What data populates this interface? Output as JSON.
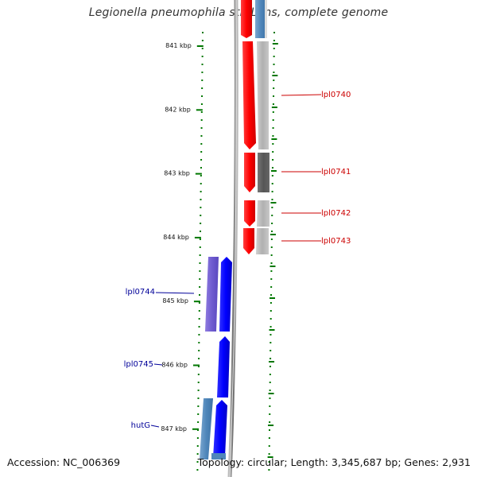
{
  "title": "Legionella pneumophila str. Lens, complete genome",
  "accession": "Accession: NC_006369",
  "summary": "Topology: circular; Length: 3,345,687 bp; Genes: 2,931",
  "kbp_ticks": [
    {
      "label": "841 kbp",
      "kbp": 841
    },
    {
      "label": "842 kbp",
      "kbp": 842
    },
    {
      "label": "843 kbp",
      "kbp": 843
    },
    {
      "label": "844 kbp",
      "kbp": 844
    },
    {
      "label": "845 kbp",
      "kbp": 845
    },
    {
      "label": "846 kbp",
      "kbp": 846
    },
    {
      "label": "847 kbp",
      "kbp": 847
    }
  ],
  "genes": [
    {
      "name": "lpl0740",
      "strand": "forward",
      "color": "#cc0000"
    },
    {
      "name": "lpl0741",
      "strand": "forward",
      "color": "#cc0000"
    },
    {
      "name": "lpl0742",
      "strand": "forward",
      "color": "#cc0000"
    },
    {
      "name": "lpl0743",
      "strand": "forward",
      "color": "#cc0000"
    },
    {
      "name": "lpl0744",
      "strand": "reverse",
      "color": "#000099"
    },
    {
      "name": "lpl0745",
      "strand": "reverse",
      "color": "#000099"
    },
    {
      "name": "hutG",
      "strand": "reverse",
      "color": "#000099"
    }
  ],
  "colors": {
    "forward_cds": "#ff0000",
    "reverse_cds": "#0000ff",
    "backbone": "#888888",
    "tick": "#007700"
  }
}
